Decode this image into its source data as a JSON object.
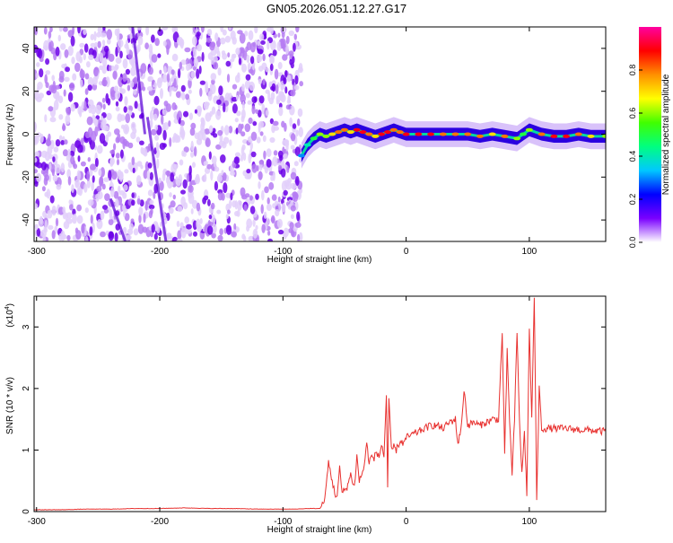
{
  "page": {
    "title": "GN05.2026.051.12.27.G17"
  },
  "chart_data": [
    {
      "type": "heatmap",
      "name": "spectrogram",
      "title": "GN05.2026.051.12.27.G17",
      "xlabel": "Height of straight line (km)",
      "ylabel": "Frequency (Hz)",
      "xlim": [
        -302,
        162
      ],
      "ylim": [
        -50,
        50
      ],
      "xticks": [
        -300,
        -200,
        -100,
        0,
        100
      ],
      "yticks": [
        -40,
        -20,
        0,
        20,
        40
      ],
      "noise_region": {
        "x_from": -302,
        "x_to": -85,
        "description": "scattered low-amplitude noise"
      },
      "signal_trace": {
        "x": [
          -85,
          -80,
          -75,
          -70,
          -65,
          -60,
          -55,
          -50,
          -45,
          -40,
          -35,
          -30,
          -25,
          -20,
          -15,
          -10,
          -5,
          0,
          10,
          20,
          30,
          40,
          50,
          60,
          70,
          80,
          90,
          95,
          100,
          110,
          120,
          130,
          140,
          150,
          162
        ],
        "freq": [
          -10,
          -5,
          -2,
          0,
          -1,
          0,
          1,
          2,
          1,
          2,
          1,
          0,
          -1,
          0,
          1,
          2,
          1,
          0,
          0,
          0,
          0,
          0,
          0,
          -1,
          0,
          -1,
          -2,
          0,
          2,
          0,
          -1,
          -1,
          0,
          -1,
          -1
        ],
        "amplitude": [
          0.3,
          0.4,
          0.5,
          0.6,
          0.6,
          0.7,
          0.8,
          0.8,
          0.7,
          0.9,
          0.9,
          0.8,
          0.7,
          0.9,
          0.9,
          0.8,
          0.8,
          0.9,
          0.9,
          0.9,
          0.8,
          0.8,
          0.8,
          0.8,
          0.7,
          0.8,
          0.6,
          0.5,
          0.6,
          0.8,
          0.9,
          0.9,
          0.8,
          0.7,
          0.6
        ]
      },
      "colorbar": {
        "label": "Normalized spectral amplitude",
        "range": [
          0,
          1
        ],
        "ticks": [
          0.0,
          0.2,
          0.4,
          0.6,
          0.8
        ],
        "tick_labels": [
          "0.0",
          "0.2",
          "0.4",
          "0.6",
          "0.8"
        ],
        "colors": [
          "#ffffff",
          "#7a00ff",
          "#0000ff",
          "#00c8ff",
          "#00ff80",
          "#40ff00",
          "#ffff00",
          "#ff9000",
          "#ff0000",
          "#ff00a0"
        ]
      }
    },
    {
      "type": "line",
      "name": "snr",
      "xlabel": "Height of straight line (km)",
      "ylabel": "SNR (10 * v/v)",
      "scale_label": "(x10",
      "scale_exponent": "4",
      "scale_suffix": ")",
      "xlim": [
        -302,
        162
      ],
      "ylim": [
        0,
        3.5
      ],
      "xticks": [
        -300,
        -200,
        -100,
        0,
        100
      ],
      "yticks": [
        0,
        1,
        2,
        3
      ],
      "color": "#e8312f",
      "series": [
        {
          "name": "SNR",
          "x": [
            -302,
            -280,
            -260,
            -240,
            -220,
            -200,
            -180,
            -160,
            -140,
            -120,
            -100,
            -90,
            -80,
            -70,
            -66,
            -63,
            -60,
            -58,
            -56,
            -54,
            -52,
            -50,
            -48,
            -45,
            -42,
            -40,
            -38,
            -36,
            -34,
            -32,
            -30,
            -28,
            -26,
            -24,
            -22,
            -20,
            -18,
            -16,
            -15,
            -14,
            -12,
            -10,
            -8,
            -6,
            -4,
            -2,
            0,
            5,
            10,
            15,
            20,
            25,
            30,
            35,
            40,
            42,
            45,
            47,
            50,
            55,
            60,
            65,
            70,
            75,
            78,
            80,
            82,
            84,
            86,
            88,
            90,
            92,
            94,
            96,
            98,
            100,
            102,
            104,
            106,
            108,
            110,
            115,
            120,
            130,
            140,
            150,
            162
          ],
          "y": [
            0.03,
            0.03,
            0.04,
            0.04,
            0.05,
            0.05,
            0.06,
            0.05,
            0.05,
            0.04,
            0.04,
            0.04,
            0.05,
            0.05,
            0.2,
            0.8,
            0.5,
            0.3,
            0.25,
            0.7,
            0.3,
            0.35,
            0.4,
            0.6,
            0.4,
            0.9,
            0.5,
            0.6,
            0.75,
            1.1,
            0.8,
            0.9,
            0.85,
            1.0,
            0.85,
            1.1,
            0.9,
            1.9,
            0.4,
            1.8,
            1.0,
            1.05,
            1.0,
            1.1,
            1.15,
            1.1,
            1.2,
            1.25,
            1.3,
            1.35,
            1.4,
            1.4,
            1.35,
            1.45,
            1.5,
            1.1,
            1.4,
            2.0,
            1.4,
            1.45,
            1.4,
            1.45,
            1.5,
            1.5,
            2.9,
            0.9,
            2.6,
            1.5,
            0.6,
            1.5,
            2.9,
            1.5,
            0.6,
            1.3,
            0.3,
            3.0,
            1.5,
            3.5,
            0.2,
            2.0,
            1.35,
            1.35,
            1.35,
            1.35,
            1.33,
            1.32,
            1.3
          ]
        }
      ]
    }
  ]
}
